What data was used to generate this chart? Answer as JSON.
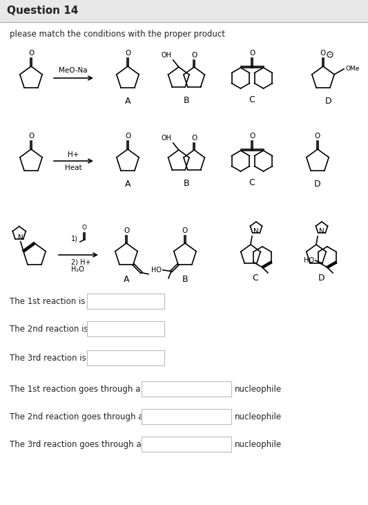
{
  "title": "Question 14",
  "subtitle": "please match the conditions with the proper product",
  "title_bar_color": "#e8e8e8",
  "body_bg": "#ffffff",
  "text_color": "#222222",
  "box_border_color": "#bbbbbb",
  "question_lines": [
    "The 1st reaction is",
    "The 2nd reaction is",
    "The 3rd reaction is",
    "The 1st reaction goes through a",
    "The 2nd reaction goes through a",
    "The 3rd reaction goes through a"
  ],
  "nucleophile_suffix": "nucleophile"
}
